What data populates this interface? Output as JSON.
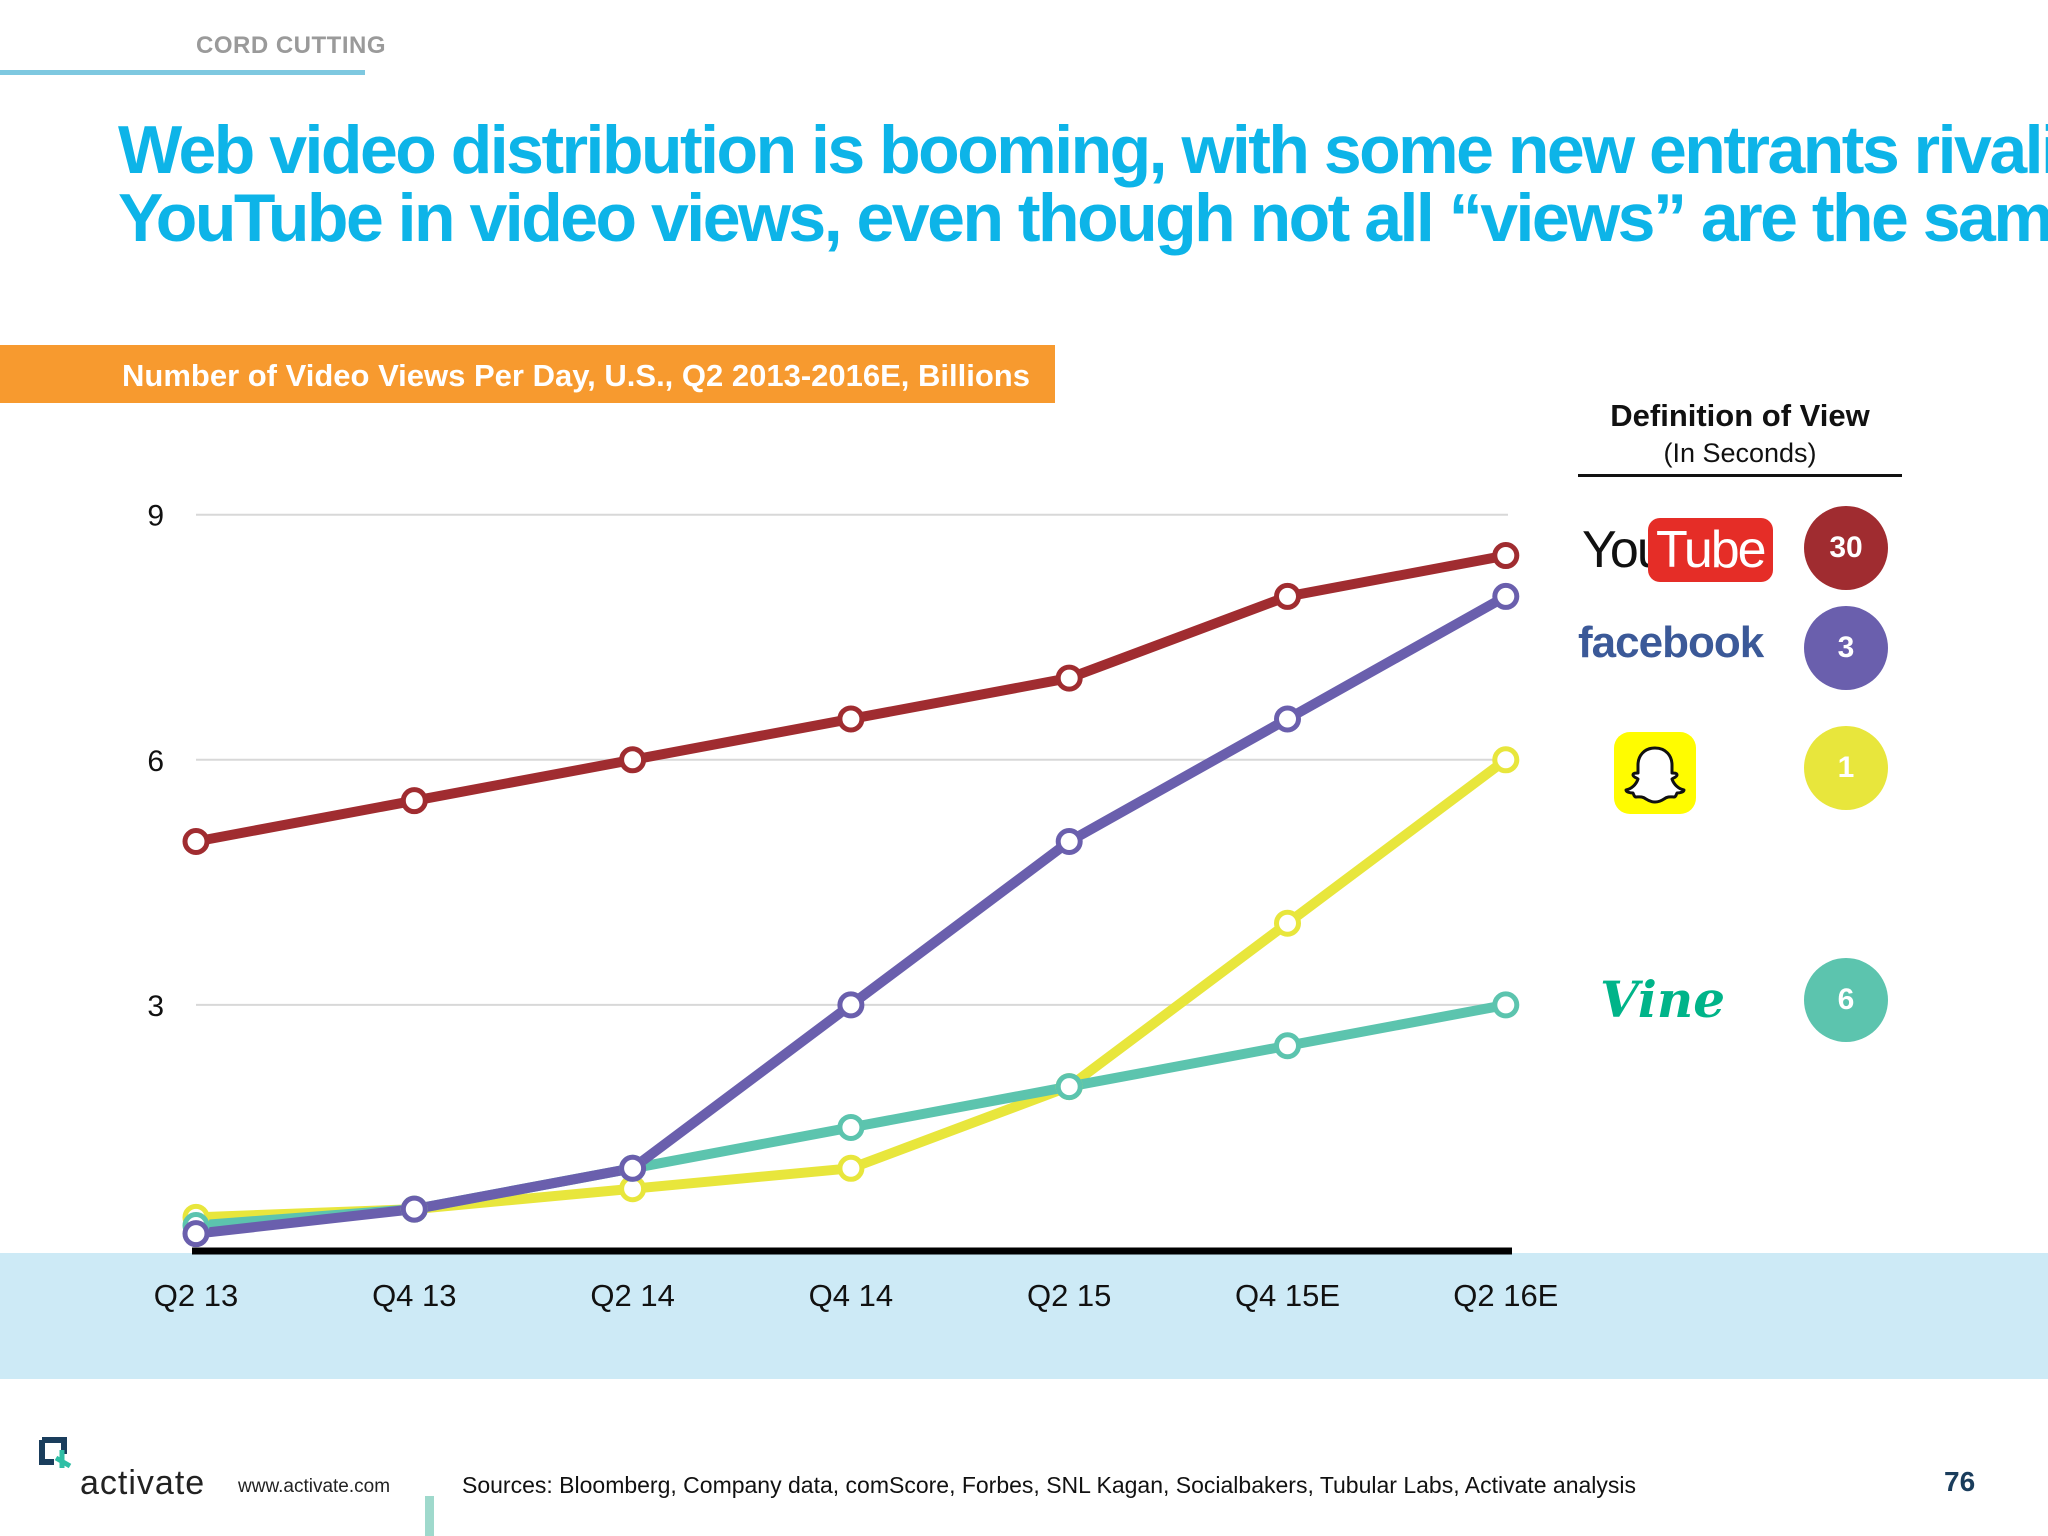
{
  "section_label": "CORD CUTTING",
  "headline": {
    "line1": "Web video distribution is booming, with some new entrants rivaling",
    "line2": "YouTube in video views, even though not all “views” are the same"
  },
  "chart_data": {
    "type": "line",
    "title": "Number of Video Views Per Day, U.S., Q2 2013-2016E, Billions",
    "categories": [
      "Q2 13",
      "Q4 13",
      "Q2 14",
      "Q4 14",
      "Q2 15",
      "Q4 15E",
      "Q2 16E"
    ],
    "yticks": [
      3,
      6,
      9
    ],
    "ylim": [
      0,
      9
    ],
    "grid": true,
    "series": [
      {
        "name": "YouTube",
        "color": "#a02c30",
        "values": [
          5.0,
          5.5,
          6.0,
          6.5,
          7.0,
          8.0,
          8.5
        ]
      },
      {
        "name": "Vine",
        "color": "#5cc4ae",
        "values": [
          0.3,
          0.5,
          1.0,
          1.5,
          2.0,
          2.5,
          3.0
        ]
      },
      {
        "name": "Snapchat",
        "color": "#e8e63c",
        "values": [
          0.4,
          0.5,
          0.75,
          1.0,
          2.0,
          4.0,
          6.0
        ]
      },
      {
        "name": "Facebook",
        "color": "#6a5fad",
        "values": [
          0.2,
          0.5,
          1.0,
          3.0,
          5.0,
          6.5,
          8.0
        ]
      }
    ]
  },
  "legend": {
    "title": "Definition of View",
    "subtitle": "(In Seconds)",
    "youtube_you": "You",
    "youtube_tube": "Tube",
    "facebook": "facebook",
    "vine": "Vine",
    "items": [
      {
        "name": "YouTube",
        "seconds": "30",
        "color": "#a02c30"
      },
      {
        "name": "Facebook",
        "seconds": "3",
        "color": "#6a5fad"
      },
      {
        "name": "Snapchat",
        "seconds": "1",
        "color": "#e8e63c"
      },
      {
        "name": "Vine",
        "seconds": "6",
        "color": "#5cc4ae"
      }
    ]
  },
  "footer": {
    "brand": "activate",
    "url": "www.activate.com",
    "sources": "Sources: Bloomberg, Company data, comScore, Forbes, SNL Kagan, Socialbakers, Tubular Labs, Activate analysis",
    "page_number": "76"
  }
}
